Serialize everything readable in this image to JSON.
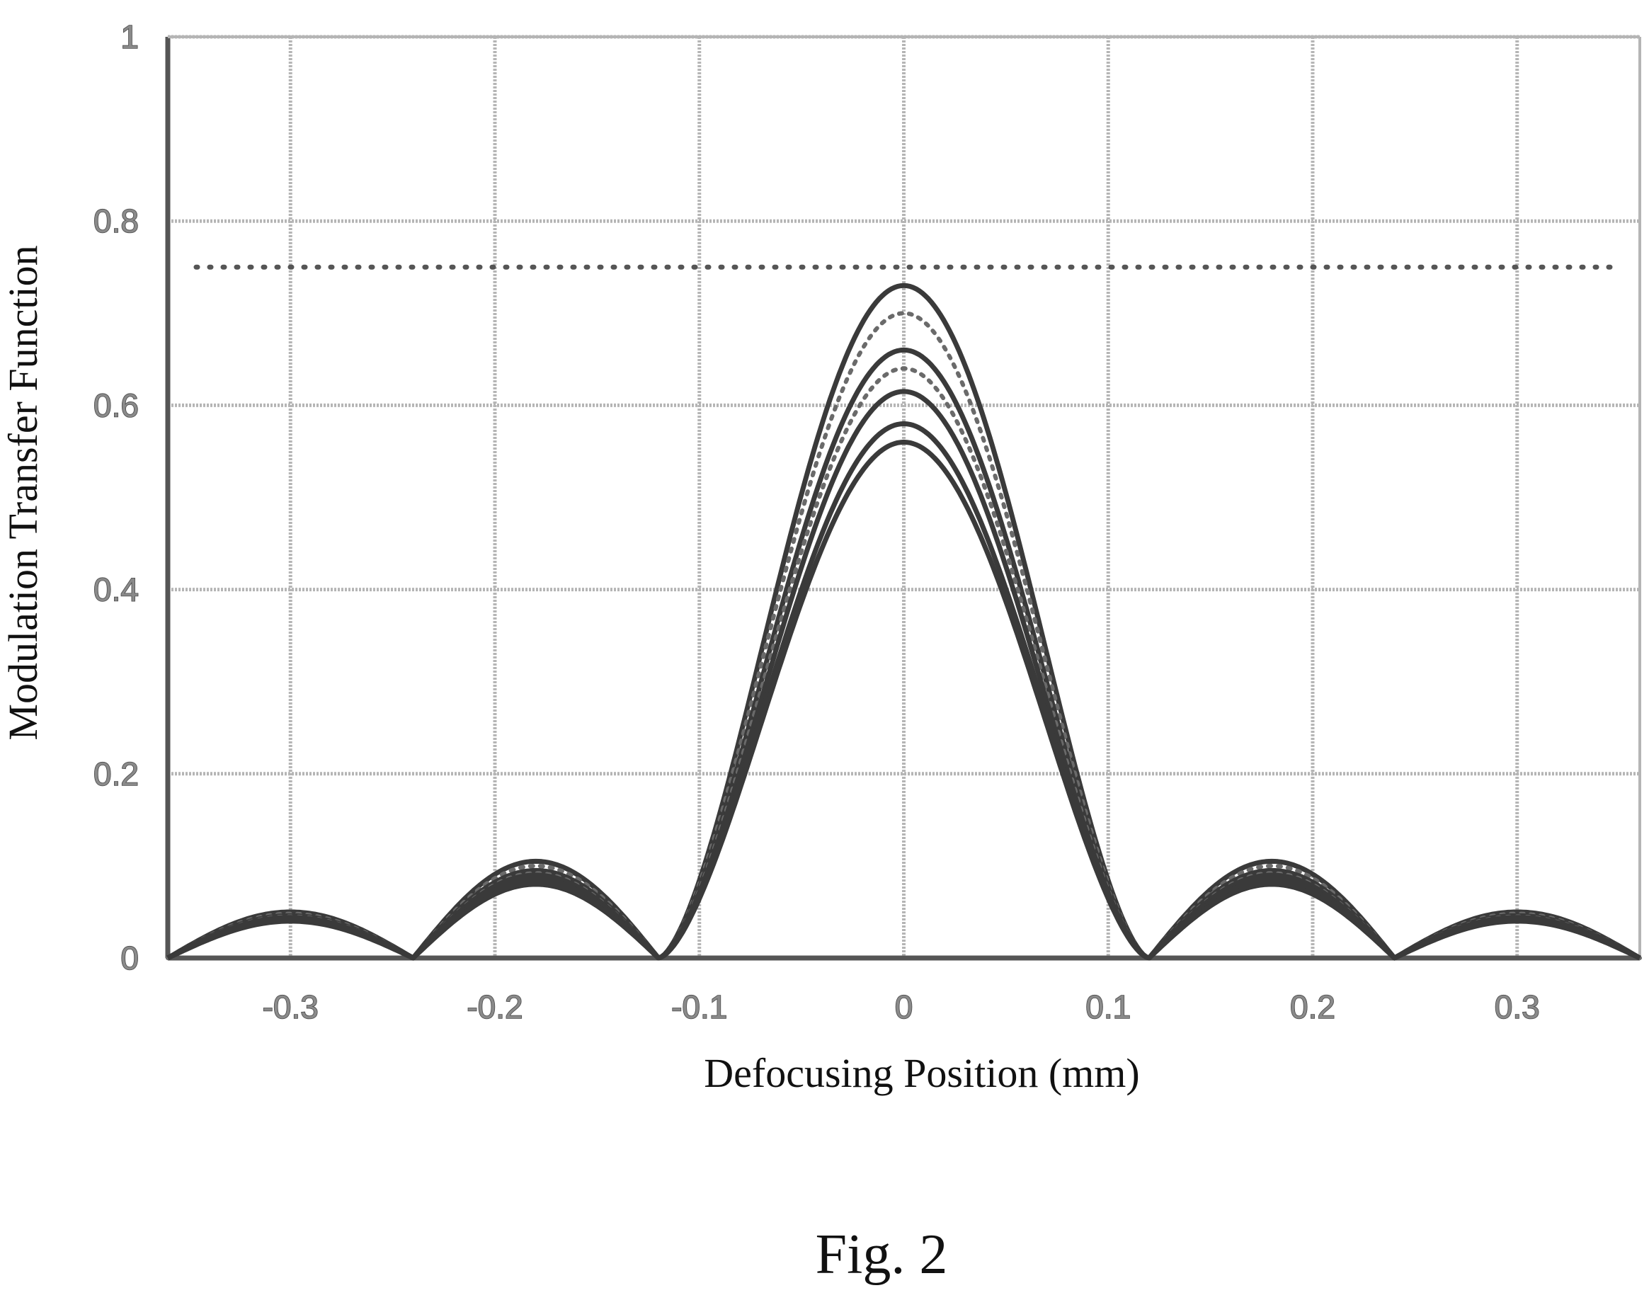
{
  "chart_data": {
    "type": "line",
    "title": "",
    "xlabel": "Defocusing Position (mm)",
    "ylabel": "Modulation Transfer Function",
    "xlim": [
      -0.36,
      0.36
    ],
    "ylim": [
      0,
      1
    ],
    "xticks": [
      -0.3,
      -0.2,
      -0.1,
      0,
      0.1,
      0.2,
      0.3
    ],
    "xtick_labels": [
      "-0.3",
      "-0.2",
      "-0.1",
      "0",
      "0.1",
      "0.2",
      "0.3"
    ],
    "yticks": [
      0,
      0.2,
      0.4,
      0.6,
      0.8,
      1
    ],
    "ytick_labels": [
      "0",
      "0.2",
      "0.4",
      "0.6",
      "0.8",
      "1"
    ],
    "grid": true,
    "reference_line": {
      "y": 0.75,
      "style": "dotted"
    },
    "series": [
      {
        "peak": 0.73,
        "sidelobe_1": 0.105,
        "sidelobe_2": 0.05,
        "style": "solid"
      },
      {
        "peak": 0.7,
        "sidelobe_1": 0.1,
        "sidelobe_2": 0.048,
        "style": "dotted"
      },
      {
        "peak": 0.66,
        "sidelobe_1": 0.095,
        "sidelobe_2": 0.046,
        "style": "solid"
      },
      {
        "peak": 0.64,
        "sidelobe_1": 0.092,
        "sidelobe_2": 0.045,
        "style": "dotted"
      },
      {
        "peak": 0.615,
        "sidelobe_1": 0.09,
        "sidelobe_2": 0.044,
        "style": "solid"
      },
      {
        "peak": 0.58,
        "sidelobe_1": 0.085,
        "sidelobe_2": 0.042,
        "style": "solid"
      },
      {
        "peak": 0.56,
        "sidelobe_1": 0.08,
        "sidelobe_2": 0.04,
        "style": "solid"
      }
    ],
    "first_zero": 0.12,
    "second_zero": 0.24
  },
  "figure": {
    "caption": "Fig. 2"
  }
}
